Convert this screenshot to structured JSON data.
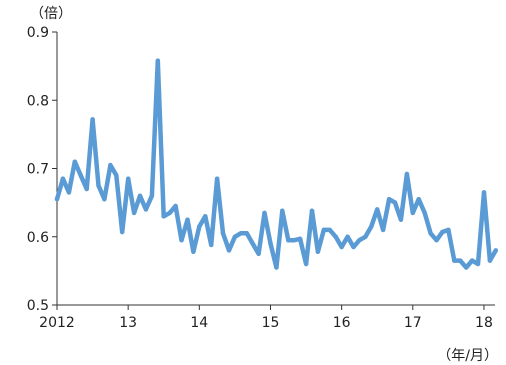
{
  "chart_data": {
    "type": "line",
    "ylabel": "（倍）",
    "xlabel": "（年/月）",
    "ylim": [
      0.5,
      0.9
    ],
    "yticks": [
      {
        "value": 0.5,
        "label": "0.5"
      },
      {
        "value": 0.6,
        "label": "0.6"
      },
      {
        "value": 0.7,
        "label": "0.7"
      },
      {
        "value": 0.8,
        "label": "0.8"
      },
      {
        "value": 0.9,
        "label": "0.9"
      }
    ],
    "xticks": [
      {
        "month_index": 0,
        "label": "2012"
      },
      {
        "month_index": 12,
        "label": "13"
      },
      {
        "month_index": 24,
        "label": "14"
      },
      {
        "month_index": 36,
        "label": "15"
      },
      {
        "month_index": 48,
        "label": "16"
      },
      {
        "month_index": 60,
        "label": "17"
      },
      {
        "month_index": 72,
        "label": "18"
      }
    ],
    "grid": false,
    "series": [
      {
        "color": "#5b9bd5",
        "values": [
          0.655,
          0.685,
          0.665,
          0.71,
          0.69,
          0.67,
          0.772,
          0.675,
          0.655,
          0.705,
          0.69,
          0.607,
          0.685,
          0.635,
          0.66,
          0.64,
          0.66,
          0.858,
          0.63,
          0.635,
          0.645,
          0.595,
          0.625,
          0.578,
          0.615,
          0.63,
          0.588,
          0.685,
          0.605,
          0.58,
          0.6,
          0.605,
          0.605,
          0.59,
          0.575,
          0.635,
          0.59,
          0.555,
          0.638,
          0.595,
          0.595,
          0.597,
          0.56,
          0.638,
          0.578,
          0.61,
          0.61,
          0.6,
          0.585,
          0.6,
          0.585,
          0.595,
          0.6,
          0.615,
          0.64,
          0.61,
          0.655,
          0.65,
          0.625,
          0.692,
          0.635,
          0.655,
          0.635,
          0.605,
          0.595,
          0.607,
          0.61,
          0.565,
          0.565,
          0.555,
          0.565,
          0.56,
          0.665,
          0.565,
          0.58
        ]
      }
    ]
  }
}
